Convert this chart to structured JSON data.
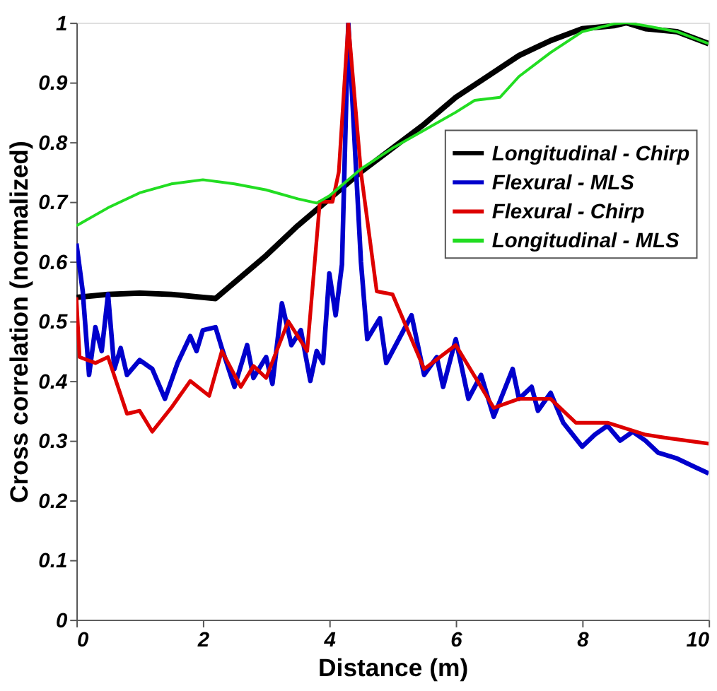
{
  "chart_data": {
    "type": "line",
    "xlabel": "Distance (m)",
    "ylabel": "Cross correlation (normalized)",
    "xlim": [
      0,
      10
    ],
    "xticks": [
      0,
      2,
      4,
      6,
      8,
      10
    ],
    "ylim": [
      0,
      1
    ],
    "yticks": [
      0,
      0.1,
      0.2,
      0.3,
      0.4,
      0.5,
      0.6,
      0.7,
      0.8,
      0.9,
      1
    ],
    "grid": false,
    "legend": "right",
    "marker": "none",
    "line_style": "solid",
    "series": [
      {
        "name": "Longitudinal - Chirp",
        "color": "#000000",
        "x": [
          0,
          0.5,
          1,
          1.5,
          2,
          2.2,
          3,
          3.5,
          4,
          4.5,
          5,
          5.5,
          6,
          6.5,
          7,
          7.5,
          8,
          8.5,
          8.7,
          9,
          9.5,
          10
        ],
        "values": [
          0.54,
          0.545,
          0.547,
          0.545,
          0.54,
          0.538,
          0.61,
          0.66,
          0.705,
          0.75,
          0.79,
          0.83,
          0.875,
          0.91,
          0.945,
          0.97,
          0.99,
          0.995,
          1.0,
          0.99,
          0.985,
          0.965
        ]
      },
      {
        "name": "Flexural - MLS",
        "color": "#0000cc",
        "x": [
          0,
          0.1,
          0.2,
          0.3,
          0.4,
          0.5,
          0.6,
          0.7,
          0.8,
          1.0,
          1.2,
          1.4,
          1.6,
          1.8,
          1.9,
          2.0,
          2.2,
          2.3,
          2.5,
          2.7,
          2.8,
          3.0,
          3.1,
          3.25,
          3.4,
          3.55,
          3.7,
          3.8,
          3.9,
          4.0,
          4.1,
          4.2,
          4.3,
          4.5,
          4.6,
          4.8,
          4.9,
          5.0,
          5.2,
          5.3,
          5.5,
          5.7,
          5.8,
          6.0,
          6.2,
          6.4,
          6.6,
          6.9,
          7.0,
          7.2,
          7.3,
          7.5,
          7.7,
          8.0,
          8.2,
          8.4,
          8.6,
          8.8,
          9.0,
          9.2,
          9.5,
          9.8,
          10
        ],
        "values": [
          0.63,
          0.55,
          0.41,
          0.49,
          0.45,
          0.545,
          0.42,
          0.455,
          0.41,
          0.435,
          0.42,
          0.37,
          0.43,
          0.475,
          0.45,
          0.485,
          0.49,
          0.455,
          0.39,
          0.46,
          0.405,
          0.44,
          0.395,
          0.53,
          0.46,
          0.485,
          0.4,
          0.45,
          0.43,
          0.58,
          0.51,
          0.595,
          1.0,
          0.6,
          0.47,
          0.505,
          0.43,
          0.45,
          0.49,
          0.51,
          0.41,
          0.44,
          0.39,
          0.47,
          0.37,
          0.41,
          0.34,
          0.42,
          0.37,
          0.39,
          0.35,
          0.38,
          0.33,
          0.29,
          0.31,
          0.325,
          0.3,
          0.315,
          0.3,
          0.28,
          0.27,
          0.255,
          0.245
        ]
      },
      {
        "name": "Flexural - Chirp",
        "color": "#dd0000",
        "x": [
          0,
          0.05,
          0.3,
          0.5,
          0.8,
          1.0,
          1.2,
          1.5,
          1.8,
          2.1,
          2.3,
          2.6,
          2.8,
          3.0,
          3.35,
          3.65,
          3.85,
          4.05,
          4.15,
          4.3,
          4.5,
          4.75,
          5.0,
          5.5,
          6.0,
          6.6,
          7.0,
          7.5,
          7.9,
          8.4,
          9.0,
          9.3,
          10
        ],
        "values": [
          0.54,
          0.44,
          0.43,
          0.44,
          0.345,
          0.35,
          0.315,
          0.355,
          0.4,
          0.375,
          0.45,
          0.39,
          0.425,
          0.405,
          0.5,
          0.45,
          0.7,
          0.7,
          0.75,
          1.0,
          0.75,
          0.55,
          0.545,
          0.42,
          0.46,
          0.355,
          0.37,
          0.37,
          0.33,
          0.33,
          0.31,
          0.305,
          0.295
        ]
      },
      {
        "name": "Longitudinal - MLS",
        "color": "#22dd22",
        "x": [
          0,
          0.5,
          1,
          1.5,
          2,
          2.5,
          3,
          3.5,
          3.8,
          4,
          4.5,
          5,
          5.5,
          6,
          6.3,
          6.7,
          7,
          7.5,
          8,
          8.5,
          8.7,
          9,
          9.5,
          10
        ],
        "values": [
          0.66,
          0.69,
          0.715,
          0.73,
          0.737,
          0.73,
          0.72,
          0.705,
          0.698,
          0.71,
          0.755,
          0.79,
          0.82,
          0.85,
          0.87,
          0.875,
          0.91,
          0.95,
          0.985,
          0.998,
          1.0,
          0.995,
          0.985,
          0.965
        ]
      }
    ]
  }
}
